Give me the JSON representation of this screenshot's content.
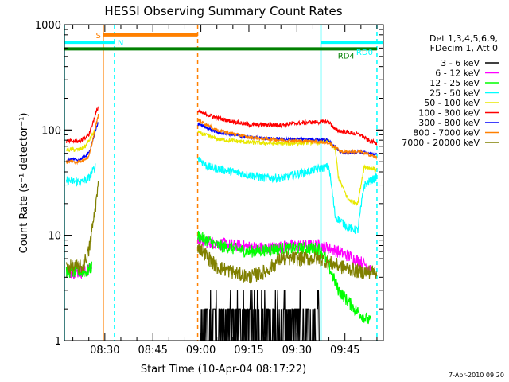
{
  "chart_data": {
    "type": "line",
    "title": "HESSI Observing Summary Count Rates",
    "xlabel": "Start Time (10-Apr-04 08:17:22)",
    "ylabel": "Count Rate (s⁻¹ detector⁻¹)",
    "yscale": "log",
    "ylim": [
      1,
      1000
    ],
    "xlim": [
      "08:17:22",
      "09:57:00"
    ],
    "x_ticks": [
      "08:30",
      "08:45",
      "09:00",
      "09:15",
      "09:30",
      "09:45"
    ],
    "y_ticks": [
      "1",
      "10",
      "100",
      "1000"
    ],
    "footer": "7-Apr-2010 09:20",
    "legend_title": [
      "Det 1,3,4,5,6,9,",
      "FDecim 1, Att 0"
    ],
    "legend_position": "right",
    "markers": [
      {
        "label": "S",
        "color": "#ff8000",
        "y": 800,
        "x_start": "08:29:30",
        "x_end": "08:59:00"
      },
      {
        "label": "N",
        "color": "#00ffff",
        "y": 680,
        "x_start": "08:17:22",
        "x_end": "08:33:00"
      },
      {
        "label": "RD0",
        "color": "#00ffff",
        "y": 680,
        "x_start": "09:37:30",
        "x_end": "09:57:00"
      },
      {
        "label": "RD4",
        "color": "#008000",
        "y": 590,
        "x_start": "08:17:22",
        "x_end": "09:55:00"
      }
    ],
    "vertical_lines": [
      {
        "x": "08:17:22",
        "color": "#00ffff",
        "style": "solid"
      },
      {
        "x": "08:29:30",
        "color": "#ff8000",
        "style": "solid"
      },
      {
        "x": "08:33:00",
        "color": "#00ffff",
        "style": "dashed"
      },
      {
        "x": "08:59:00",
        "color": "#ff8000",
        "style": "dashed"
      },
      {
        "x": "09:37:30",
        "color": "#00ffff",
        "style": "solid"
      },
      {
        "x": "09:55:00",
        "color": "#00ffff",
        "style": "dashed"
      }
    ],
    "series": [
      {
        "name": "3 - 6 keV",
        "color": "#000000",
        "noise": 0.6,
        "segments": [
          [
            [
              "09:00",
              2
            ],
            [
              "09:10",
              1.5
            ],
            [
              "09:20",
              1.5
            ],
            [
              "09:30",
              1.5
            ],
            [
              "09:37",
              1.5
            ]
          ]
        ]
      },
      {
        "name": "6 - 12 keV",
        "color": "#ff00ff",
        "noise": 0.06,
        "segments": [
          [
            [
              "08:18",
              4.5
            ],
            [
              "08:24",
              4.5
            ],
            [
              "08:26",
              5
            ]
          ],
          [
            [
              "08:59",
              9
            ],
            [
              "09:10",
              8
            ],
            [
              "09:20",
              7.5
            ],
            [
              "09:30",
              8
            ],
            [
              "09:37",
              8
            ],
            [
              "09:40",
              7.5
            ],
            [
              "09:43",
              7
            ],
            [
              "09:48",
              6
            ],
            [
              "09:53",
              5
            ]
          ]
        ]
      },
      {
        "name": "12 - 25 keV",
        "color": "#00ff00",
        "noise": 0.06,
        "segments": [
          [
            [
              "08:18",
              4.5
            ],
            [
              "08:24",
              4.5
            ],
            [
              "08:26",
              5
            ]
          ],
          [
            [
              "08:59",
              10
            ],
            [
              "09:05",
              8
            ],
            [
              "09:15",
              7
            ],
            [
              "09:25",
              7.5
            ],
            [
              "09:37",
              7.5
            ],
            [
              "09:39",
              6
            ],
            [
              "09:43",
              3
            ],
            [
              "09:48",
              2
            ],
            [
              "09:53",
              1.5
            ]
          ]
        ]
      },
      {
        "name": "25 - 50 keV",
        "color": "#00ffff",
        "noise": 0.04,
        "segments": [
          [
            [
              "08:18",
              33
            ],
            [
              "08:23",
              32
            ],
            [
              "08:25",
              35
            ],
            [
              "08:27",
              45
            ]
          ],
          [
            [
              "08:59",
              55
            ],
            [
              "09:02",
              45
            ],
            [
              "09:10",
              40
            ],
            [
              "09:20",
              35
            ],
            [
              "09:25",
              35
            ],
            [
              "09:30",
              38
            ],
            [
              "09:37",
              43
            ],
            [
              "09:40",
              45
            ],
            [
              "09:42",
              15
            ],
            [
              "09:46",
              12
            ],
            [
              "09:49",
              11
            ],
            [
              "09:51",
              30
            ],
            [
              "09:55",
              36
            ]
          ]
        ]
      },
      {
        "name": "50 - 100 keV",
        "color": "#e8e800",
        "noise": 0.02,
        "segments": [
          [
            [
              "08:18",
              65
            ],
            [
              "08:22",
              65
            ],
            [
              "08:24",
              70
            ],
            [
              "08:27",
              100
            ]
          ],
          [
            [
              "08:59",
              95
            ],
            [
              "09:05",
              82
            ],
            [
              "09:15",
              76
            ],
            [
              "09:25",
              74
            ],
            [
              "09:35",
              76
            ],
            [
              "09:40",
              78
            ],
            [
              "09:42",
              65
            ],
            [
              "09:43",
              35
            ],
            [
              "09:46",
              22
            ],
            [
              "09:49",
              20
            ],
            [
              "09:51",
              45
            ],
            [
              "09:55",
              42
            ]
          ]
        ]
      },
      {
        "name": "100 - 300 keV",
        "color": "#ff0000",
        "noise": 0.02,
        "segments": [
          [
            [
              "08:18",
              78
            ],
            [
              "08:22",
              78
            ],
            [
              "08:25",
              90
            ],
            [
              "08:28",
              170
            ]
          ],
          [
            [
              "08:59",
              150
            ],
            [
              "09:05",
              130
            ],
            [
              "09:15",
              112
            ],
            [
              "09:25",
              112
            ],
            [
              "09:33",
              118
            ],
            [
              "09:40",
              120
            ],
            [
              "09:42",
              100
            ],
            [
              "09:46",
              95
            ],
            [
              "09:50",
              90
            ],
            [
              "09:52",
              80
            ],
            [
              "09:55",
              75
            ]
          ]
        ]
      },
      {
        "name": "300 - 800 keV",
        "color": "#0000ff",
        "noise": 0.015,
        "segments": [
          [
            [
              "08:18",
              52
            ],
            [
              "08:22",
              52
            ],
            [
              "08:25",
              60
            ],
            [
              "08:28",
              120
            ]
          ],
          [
            [
              "08:59",
              115
            ],
            [
              "09:05",
              95
            ],
            [
              "09:15",
              85
            ],
            [
              "09:25",
              82
            ],
            [
              "09:35",
              82
            ],
            [
              "09:40",
              80
            ],
            [
              "09:44",
              60
            ],
            [
              "09:50",
              62
            ],
            [
              "09:55",
              58
            ]
          ]
        ]
      },
      {
        "name": "800 - 7000 keV",
        "color": "#ff8000",
        "noise": 0.015,
        "segments": [
          [
            [
              "08:18",
              50
            ],
            [
              "08:22",
              50
            ],
            [
              "08:25",
              55
            ],
            [
              "08:28",
              140
            ]
          ],
          [
            [
              "08:59",
              125
            ],
            [
              "09:05",
              100
            ],
            [
              "09:15",
              85
            ],
            [
              "09:25",
              80
            ],
            [
              "09:35",
              78
            ],
            [
              "09:40",
              75
            ],
            [
              "09:44",
              62
            ],
            [
              "09:50",
              62
            ],
            [
              "09:55",
              55
            ]
          ]
        ]
      },
      {
        "name": "7000 - 20000 keV",
        "color": "#808000",
        "noise": 0.07,
        "segments": [
          [
            [
              "08:18",
              5
            ],
            [
              "08:23",
              5
            ],
            [
              "08:25",
              7
            ],
            [
              "08:27",
              18
            ],
            [
              "08:28",
              30
            ]
          ],
          [
            [
              "08:59",
              8
            ],
            [
              "09:05",
              5
            ],
            [
              "09:10",
              4.5
            ],
            [
              "09:15",
              4
            ],
            [
              "09:20",
              4.5
            ],
            [
              "09:25",
              6
            ],
            [
              "09:30",
              6
            ],
            [
              "09:37",
              6
            ],
            [
              "09:40",
              5.5
            ],
            [
              "09:44",
              5
            ],
            [
              "09:50",
              4.5
            ],
            [
              "09:55",
              4.5
            ]
          ]
        ]
      }
    ]
  }
}
